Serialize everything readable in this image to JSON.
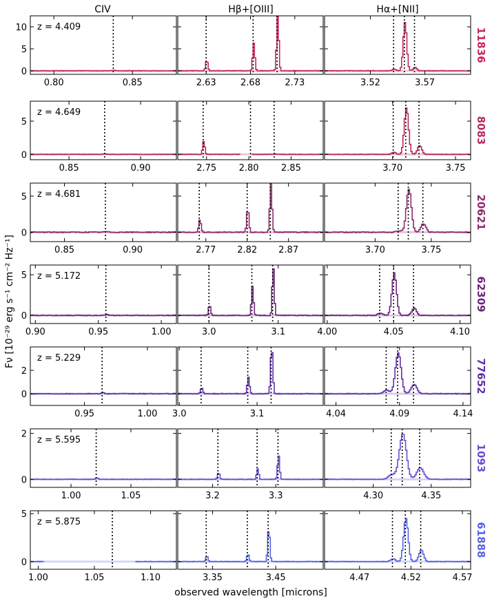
{
  "xlabel": "observed wavelength [microns]",
  "ylabel": "Fν [10⁻²⁹ erg s⁻¹ cm⁻² Hz⁻¹]",
  "column_titles": [
    "CIV",
    "Hβ+[OIII]",
    "Hα+[NII]"
  ],
  "chart_data": {
    "type": "line",
    "title": "",
    "xlabel": "observed wavelength [microns]",
    "ylabel": "Fν [10⁻²⁹ erg s⁻¹ cm⁻² Hz⁻¹]",
    "rows": [
      {
        "id": "11836",
        "z": 4.409,
        "z_label": "z = 4.409",
        "color": "#c8245a",
        "ylim": [
          -0.8,
          12.5
        ],
        "yticks": [
          0,
          5,
          10
        ],
        "ytick_labels": [
          "0",
          "5",
          "10"
        ],
        "panels": [
          {
            "xlim": [
              0.785,
              0.878
            ],
            "xticks": [
              0.8,
              0.85
            ],
            "xtick_labels": [
              "0.80",
              "0.85"
            ],
            "lines": [
              0.8378
            ],
            "lines_peak": [
              0.12
            ],
            "width": 0.0012,
            "noise": 0.05,
            "gaps": []
          },
          {
            "xlim": [
              2.598,
              2.762
            ],
            "xticks": [
              2.63,
              2.68,
              2.73
            ],
            "xtick_labels": [
              "2.63",
              "2.68",
              "2.73"
            ],
            "lines": [
              2.63,
              2.683,
              2.71
            ],
            "lines_peak": [
              2.4,
              6.3,
              12.5
            ],
            "width": 0.0012,
            "noise": 0.05,
            "gaps": []
          },
          {
            "xlim": [
              3.478,
              3.612
            ],
            "xticks": [
              3.52,
              3.57
            ],
            "xtick_labels": [
              "3.52",
              "3.57"
            ],
            "lines": [
              3.5413,
              3.5512,
              3.5605
            ],
            "lines_peak": [
              0.4,
              11.0,
              0.8
            ],
            "width": 0.0016,
            "noise": 0.05,
            "gaps": []
          }
        ]
      },
      {
        "id": "8083",
        "z": 4.649,
        "z_label": "z = 4.649",
        "color": "#b5285f",
        "ylim": [
          -0.8,
          8.0
        ],
        "yticks": [
          0,
          5
        ],
        "ytick_labels": [
          "0",
          "5"
        ],
        "panels": [
          {
            "xlim": [
              0.823,
              0.925
            ],
            "xticks": [
              0.85,
              0.9
            ],
            "xtick_labels": [
              "0.85",
              "0.90"
            ],
            "lines": [
              0.8749
            ],
            "lines_peak": [
              0.08
            ],
            "width": 0.0012,
            "noise": 0.05,
            "gaps": []
          },
          {
            "xlim": [
              2.716,
              2.888
            ],
            "xticks": [
              2.75,
              2.8,
              2.85
            ],
            "xtick_labels": [
              "2.75",
              "2.80",
              "2.85"
            ],
            "lines": [
              2.746,
              2.802,
              2.83
            ],
            "lines_peak": [
              2.0,
              0.1,
              0.1
            ],
            "width": 0.0012,
            "noise": 0.05,
            "gaps": [
              [
                2.791,
                2.802
              ]
            ]
          },
          {
            "xlim": [
              3.646,
              3.762
            ],
            "xticks": [
              3.7,
              3.75
            ],
            "xtick_labels": [
              "3.70",
              "3.75"
            ],
            "lines": [
              3.7005,
              3.7105,
              3.721
            ],
            "lines_peak": [
              0.3,
              7.0,
              1.3
            ],
            "width": 0.0017,
            "noise": 0.05,
            "gaps": []
          }
        ]
      },
      {
        "id": "20621",
        "z": 4.681,
        "z_label": "z = 4.681",
        "color": "#8e2a6a",
        "ylim": [
          -1.3,
          6.8
        ],
        "yticks": [
          0,
          5
        ],
        "ytick_labels": [
          "0",
          "5"
        ],
        "panels": [
          {
            "xlim": [
              0.825,
              0.932
            ],
            "xticks": [
              0.85,
              0.9
            ],
            "xtick_labels": [
              "0.85",
              "0.90"
            ],
            "lines": [
              0.88
            ],
            "lines_peak": [
              0.1
            ],
            "width": 0.0012,
            "noise": 0.12,
            "gaps": []
          },
          {
            "xlim": [
              2.736,
              2.912
            ],
            "xticks": [
              2.77,
              2.82,
              2.87
            ],
            "xtick_labels": [
              "2.77",
              "2.82",
              "2.87"
            ],
            "lines": [
              2.762,
              2.82,
              2.848
            ],
            "lines_peak": [
              1.8,
              3.3,
              6.8
            ],
            "width": 0.0013,
            "noise": 0.12,
            "gaps": []
          },
          {
            "xlim": [
              3.655,
              3.785
            ],
            "xticks": [
              3.7,
              3.75
            ],
            "xtick_labels": [
              "3.70",
              "3.75"
            ],
            "lines": [
              3.7205,
              3.7295,
              3.7425
            ],
            "lines_peak": [
              0.2,
              6.0,
              1.2
            ],
            "width": 0.0022,
            "noise": 0.12,
            "gaps": []
          }
        ]
      },
      {
        "id": "62309",
        "z": 5.172,
        "z_label": "z = 5.172",
        "color": "#6a2478",
        "ylim": [
          -1.0,
          6.2
        ],
        "yticks": [
          0,
          5
        ],
        "ytick_labels": [
          "0",
          "5"
        ],
        "panels": [
          {
            "xlim": [
              0.896,
              1.012
            ],
            "xticks": [
              0.9,
              0.95,
              1.0
            ],
            "xtick_labels": [
              "0.90",
              "0.95",
              "1.00"
            ],
            "lines": [
              0.956
            ],
            "lines_peak": [
              0.1
            ],
            "width": 0.0012,
            "noise": 0.08,
            "gaps": []
          },
          {
            "xlim": [
              2.955,
              3.165
            ],
            "xticks": [
              3.0,
              3.1
            ],
            "xtick_labels": [
              "3.0",
              "3.1"
            ],
            "lines": [
              3.0,
              3.062,
              3.092
            ],
            "lines_peak": [
              1.3,
              3.6,
              6.0
            ],
            "width": 0.0014,
            "noise": 0.08,
            "gaps": []
          },
          {
            "xlim": [
              3.998,
              4.108
            ],
            "xticks": [
              4.0,
              4.05,
              4.1
            ],
            "xtick_labels": [
              "4.00",
              "4.05",
              "4.10"
            ],
            "lines": [
              4.0395,
              4.05,
              4.065
            ],
            "lines_peak": [
              0.3,
              5.2,
              0.9
            ],
            "width": 0.0017,
            "noise": 0.08,
            "gaps": []
          }
        ]
      },
      {
        "id": "77652",
        "z": 5.229,
        "z_label": "z = 5.229",
        "color": "#6031a8",
        "ylim": [
          -1.0,
          4.0
        ],
        "yticks": [
          0,
          2
        ],
        "ytick_labels": [
          "0",
          "2"
        ],
        "panels": [
          {
            "xlim": [
              0.907,
              1.023
            ],
            "xticks": [
              0.95,
              1.0
            ],
            "xtick_labels": [
              "0.95",
              "1.00"
            ],
            "lines": [
              0.964
            ],
            "lines_peak": [
              0.1
            ],
            "width": 0.0012,
            "noise": 0.08,
            "gaps": []
          },
          {
            "xlim": [
              2.998,
              3.185
            ],
            "xticks": [
              3.0,
              3.1
            ],
            "xtick_labels": [
              "3.0",
              "3.1"
            ],
            "lines": [
              3.028,
              3.088,
              3.118
            ],
            "lines_peak": [
              0.5,
              1.4,
              4.0
            ],
            "width": 0.0014,
            "noise": 0.08,
            "gaps": []
          },
          {
            "xlim": [
              4.031,
              4.146
            ],
            "xticks": [
              4.04,
              4.09,
              4.14
            ],
            "xtick_labels": [
              "4.04",
              "4.09",
              "4.14"
            ],
            "lines": [
              4.0795,
              4.0885,
              4.101
            ],
            "lines_peak": [
              0.3,
              3.5,
              0.8
            ],
            "width": 0.0022,
            "noise": 0.08,
            "gaps": []
          }
        ]
      },
      {
        "id": "1093",
        "z": 5.595,
        "z_label": "z = 5.595",
        "color": "#6b4bd1",
        "ylim": [
          -0.35,
          2.2
        ],
        "yticks": [
          0,
          2
        ],
        "ytick_labels": [
          "0",
          "2"
        ],
        "panels": [
          {
            "xlim": [
              0.966,
              1.088
            ],
            "xticks": [
              1.0,
              1.05
            ],
            "xtick_labels": [
              "1.00",
              "1.05"
            ],
            "lines": [
              1.021
            ],
            "lines_peak": [
              0.05
            ],
            "width": 0.0012,
            "noise": 0.05,
            "gaps": []
          },
          {
            "xlim": [
              3.145,
              3.375
            ],
            "xticks": [
              3.2,
              3.3
            ],
            "xtick_labels": [
              "3.2",
              "3.3"
            ],
            "lines": [
              3.2085,
              3.2705,
              3.3035
            ],
            "lines_peak": [
              0.3,
              0.45,
              1.05
            ],
            "width": 0.0016,
            "noise": 0.05,
            "gaps": []
          },
          {
            "xlim": [
              4.258,
              4.384
            ],
            "xticks": [
              4.3,
              4.35
            ],
            "xtick_labels": [
              "4.30",
              "4.35"
            ],
            "lines": [
              4.3155,
              4.325,
              4.34
            ],
            "lines_peak": [
              0.2,
              2.0,
              0.5
            ],
            "width": 0.003,
            "noise": 0.05,
            "gaps": []
          }
        ]
      },
      {
        "id": "61888",
        "z": 5.875,
        "z_label": "z = 5.875",
        "color": "#5563e0",
        "ylim": [
          -0.8,
          5.3
        ],
        "yticks": [
          0,
          5
        ],
        "ytick_labels": [
          "0",
          "5"
        ],
        "panels": [
          {
            "xlim": [
              0.993,
              1.123
            ],
            "xticks": [
              1.0,
              1.05,
              1.1
            ],
            "xtick_labels": [
              "1.00",
              "1.05",
              "1.10"
            ],
            "lines": [
              1.066
            ],
            "lines_peak": [
              0.05
            ],
            "width": 0.0012,
            "noise": 0.05,
            "gaps": [
              [
                1.005,
                1.086
              ]
            ]
          },
          {
            "xlim": [
              3.295,
              3.525
            ],
            "xticks": [
              3.35,
              3.45
            ],
            "xtick_labels": [
              "3.35",
              "3.45"
            ],
            "lines": [
              3.34,
              3.405,
              3.438
            ],
            "lines_peak": [
              0.6,
              0.8,
              3.5
            ],
            "width": 0.0016,
            "noise": 0.06,
            "gaps": []
          },
          {
            "xlim": [
              4.436,
              4.578
            ],
            "xticks": [
              4.47,
              4.52,
              4.57
            ],
            "xtick_labels": [
              "4.47",
              "4.52",
              "4.57"
            ],
            "lines": [
              4.502,
              4.5145,
              4.5295
            ],
            "lines_peak": [
              0.3,
              4.5,
              1.2
            ],
            "width": 0.0022,
            "noise": 0.06,
            "gaps": []
          }
        ]
      }
    ]
  }
}
